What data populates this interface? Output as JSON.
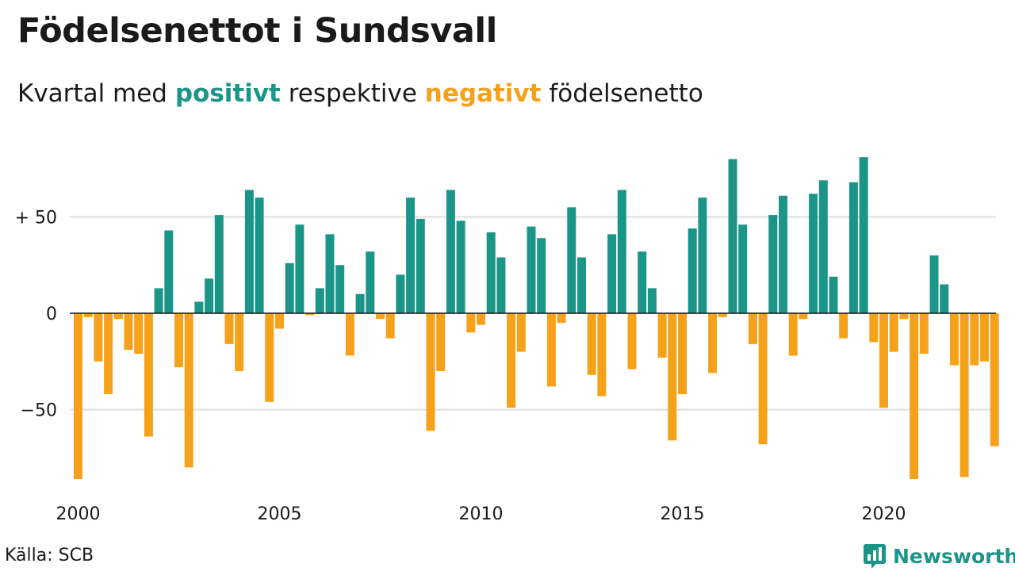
{
  "title": "Födelsenettot i Sundsvall",
  "subtitle": {
    "part1": "Kvartal med ",
    "positive": "positivt",
    "part2": " respektive ",
    "negative": "negativt",
    "part3": " födelsenetto"
  },
  "source": "Källa: SCB",
  "brand": "Newsworthy",
  "colors": {
    "positive": "#1a9588",
    "negative": "#f5a21a",
    "grid": "#dddddd"
  },
  "chart_data": {
    "type": "bar",
    "x_start": "2000-Q1",
    "frequency": "quarterly",
    "ylim": [
      -88,
      82
    ],
    "yticks": [
      {
        "value": 50,
        "label": "+ 50"
      },
      {
        "value": 0,
        "label": "0"
      },
      {
        "value": -50,
        "label": "−50"
      }
    ],
    "xticks": [
      {
        "year": 2000,
        "label": "2000"
      },
      {
        "year": 2005,
        "label": "2005"
      },
      {
        "year": 2010,
        "label": "2010"
      },
      {
        "year": 2015,
        "label": "2015"
      },
      {
        "year": 2020,
        "label": "2020"
      }
    ],
    "values": [
      -86,
      -2,
      -25,
      -42,
      -3,
      -19,
      -21,
      -64,
      13,
      43,
      -28,
      -80,
      6,
      18,
      51,
      -16,
      -30,
      64,
      60,
      -46,
      -8,
      26,
      46,
      -1,
      13,
      41,
      25,
      -22,
      10,
      32,
      -3,
      -13,
      20,
      60,
      49,
      -61,
      -30,
      64,
      48,
      -10,
      -6,
      42,
      29,
      -49,
      -20,
      45,
      39,
      -38,
      -5,
      55,
      29,
      -32,
      -43,
      41,
      64,
      -29,
      32,
      13,
      -23,
      -66,
      -42,
      44,
      60,
      -31,
      -2,
      80,
      46,
      -16,
      -68,
      51,
      61,
      -22,
      -3,
      62,
      69,
      19,
      -13,
      68,
      81,
      -15,
      -49,
      -20,
      -3,
      -86,
      -21,
      30,
      15,
      -27,
      -85,
      -27,
      -25,
      -69
    ]
  }
}
